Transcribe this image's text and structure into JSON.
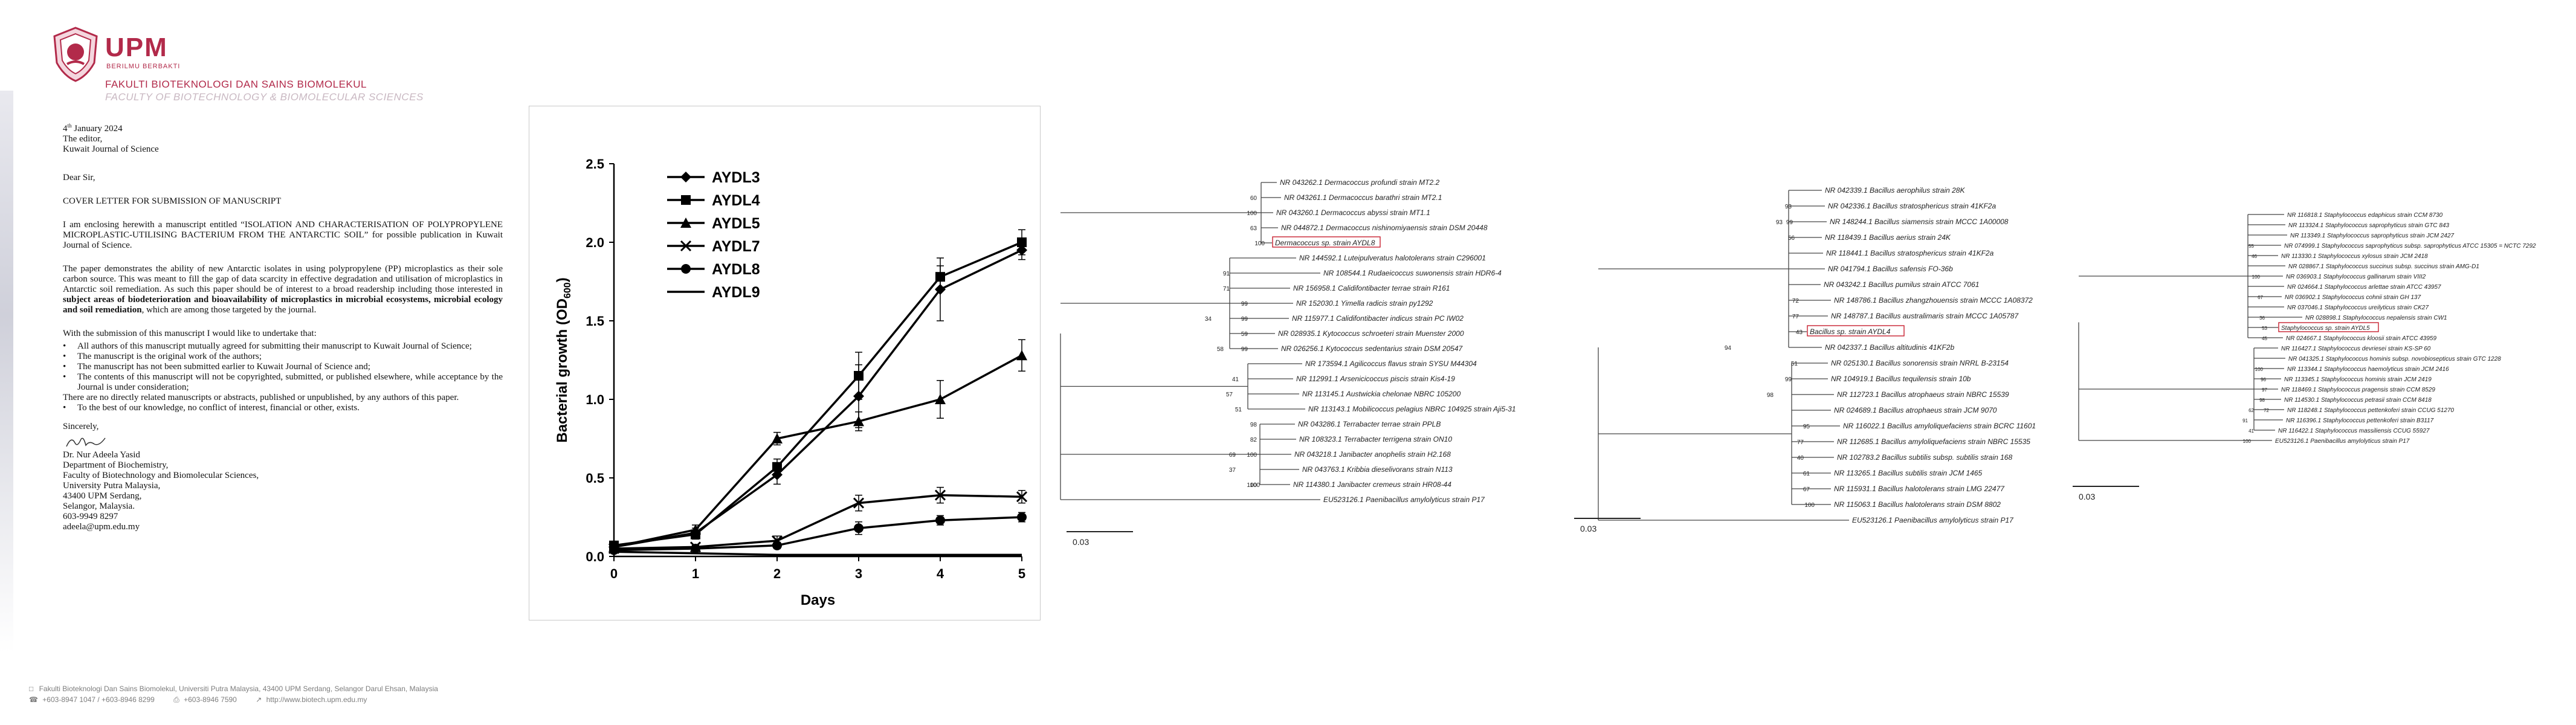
{
  "letterhead": {
    "logo_text": "UPM",
    "logo_tagline": "BERILMU BERBAKTI",
    "faculty_malay": "FAKULTI BIOTEKNOLOGI DAN SAINS BIOMOLEKUL",
    "faculty_english": "FACULTY OF BIOTECHNOLOGY & BIOMOLECULAR SCIENCES"
  },
  "letter": {
    "date_day": "4",
    "date_suffix": "th",
    "date_rest": " January 2024",
    "recipient": [
      "The editor,",
      "Kuwait Journal of Science"
    ],
    "salutation": "Dear Sir,",
    "subject": "COVER LETTER FOR SUBMISSION OF MANUSCRIPT",
    "para1": "I am enclosing herewith a manuscript entitled “ISOLATION AND CHARACTERISATION OF POLYPROPYLENE MICROPLASTIC-UTILISING BACTERIUM FROM THE ANTARCTIC SOIL” for possible publication in Kuwait Journal of Science.",
    "para2_a": "The paper demonstrates the ability of new Antarctic isolates in using polypropylene (PP) microplastics as their sole carbon source. This was meant to fill the gap of data scarcity in effective degradation and utilisation of microplastics in Antarctic soil remediation. As such this paper should be of interest to a broad readership including those interested in ",
    "para2_b": "subject areas of biodeterioration and bioavailability of microplastics in microbial ecosystems, microbial ecology and soil remediation",
    "para2_c": ", which are among those targeted by the journal.",
    "intro_list": "With the submission of this manuscript I would like to undertake that:",
    "bullets": [
      "All authors of this manuscript mutually agreed for submitting their manuscript to Kuwait Journal of Science;",
      "The manuscript is the original work of the authors;",
      "The manuscript has not been submitted earlier to Kuwait Journal of Science and;",
      "The contents of this manuscript will not be copyrighted, submitted, or published elsewhere, while acceptance by the Journal is under consideration;"
    ],
    "no_related": "There are no directly related manuscripts or abstracts, published or unpublished, by any authors of this paper.",
    "bullet_last": "To the best of our knowledge, no conflict of interest, financial or other, exists.",
    "closing": "Sincerely,",
    "signature_block": [
      "Dr. Nur Adeela Yasid",
      "Department of Biochemistry,",
      "Faculty of Biotechnology and Biomolecular Sciences,",
      "University Putra Malaysia,",
      "43400 UPM Serdang,",
      "Selangor, Malaysia.",
      "603-9949 8297",
      "adeela@upm.edu.my"
    ]
  },
  "footer": {
    "address": "Fakulti Bioteknologi Dan Sains Biomolekul, Universiti Putra Malaysia, 43400 UPM Serdang, Selangor Darul Ehsan, Malaysia",
    "phone": "+603-8947 1047 / +603-8946 8299",
    "fax": "+603-8946 7590",
    "web": "http://www.biotech.upm.edu.my"
  },
  "chart_data": {
    "type": "line",
    "xlabel": "Days",
    "ylabel_main": "Bacterial growth (OD",
    "ylabel_sub": "600",
    "ylabel_end": ")",
    "x": [
      0,
      1,
      2,
      3,
      4,
      5
    ],
    "xlim": [
      0,
      5
    ],
    "ylim": [
      0,
      2.5
    ],
    "yticks": [
      "0.0",
      "0.5",
      "1.0",
      "1.5",
      "2.0",
      "2.5"
    ],
    "xticks": [
      "0",
      "1",
      "2",
      "3",
      "4",
      "5"
    ],
    "legend_position": "top-left",
    "series": [
      {
        "name": "AYDL3",
        "marker": "diamond",
        "values": [
          0.06,
          0.15,
          0.52,
          1.02,
          1.7,
          1.95
        ],
        "err": [
          0.01,
          0.03,
          0.06,
          0.2,
          0.2,
          0.06
        ]
      },
      {
        "name": "AYDL4",
        "marker": "square",
        "values": [
          0.07,
          0.14,
          0.57,
          1.15,
          1.78,
          2.0
        ],
        "err": [
          0.01,
          0.03,
          0.05,
          0.15,
          0.07,
          0.08
        ]
      },
      {
        "name": "AYDL5",
        "marker": "triangle",
        "values": [
          0.06,
          0.17,
          0.75,
          0.86,
          1.0,
          1.28
        ],
        "err": [
          0.01,
          0.03,
          0.04,
          0.06,
          0.12,
          0.1
        ]
      },
      {
        "name": "AYDL7",
        "marker": "cross",
        "values": [
          0.05,
          0.06,
          0.1,
          0.34,
          0.39,
          0.38
        ],
        "err": [
          0.01,
          0.01,
          0.03,
          0.05,
          0.05,
          0.04
        ]
      },
      {
        "name": "AYDL8",
        "marker": "circle",
        "values": [
          0.04,
          0.05,
          0.07,
          0.18,
          0.23,
          0.25
        ],
        "err": [
          0.01,
          0.01,
          0.02,
          0.04,
          0.03,
          0.03
        ]
      },
      {
        "name": "AYDL9",
        "marker": "none",
        "values": [
          0.03,
          0.02,
          0.01,
          0.01,
          0.01,
          0.01
        ],
        "err": [
          0,
          0,
          0,
          0,
          0,
          0
        ]
      }
    ]
  },
  "trees": [
    {
      "scale_label": "0.03",
      "leaves": [
        "NR 043262.1 Dermacoccus profundi strain MT2.2",
        "NR 043261.1 Dermacoccus barathri strain MT2.1",
        "NR 043260.1 Dermacoccus abyssi strain MT1.1",
        "NR 044872.1 Dermacoccus nishinomiyaensis strain DSM 20448",
        "Dermacoccus sp. strain AYDL8",
        "NR 144592.1 Luteipulveratus halotolerans strain C296001",
        "NR 108544.1 Rudaeicoccus suwonensis strain HDR6-4",
        "NR 156958.1 Calidifontibacter terrae strain R161",
        "NR 152030.1 Yimella radicis strain py1292",
        "NR 115977.1 Calidifontibacter indicus strain PC IW02",
        "NR 028935.1 Kytococcus schroeteri strain Muenster 2000",
        "NR 026256.1 Kytococcus sedentarius strain DSM 20547",
        "NR 173594.1 Agilicoccus flavus strain SYSU M44304",
        "NR 112991.1 Arsenicicoccus piscis strain Kis4-19",
        "NR 113145.1 Austwickia chelonae NBRC 105200",
        "NR 113143.1 Mobilicoccus pelagius NBRC 104925 strain Aji5-31",
        "NR 043286.1 Terrabacter terrae strain PPLB",
        "NR 108323.1 Terrabacter terrigena strain ON10",
        "NR 043218.1 Janibacter anophelis strain H2.168",
        "NR 043763.1 Kribbia dieselivorans strain N113",
        "NR 114380.1 Janibacter cremeus strain HR08-44",
        "EU523126.1 Paenibacillus amylolyticus strain P17"
      ],
      "numbers": [
        "100",
        "60",
        "100",
        "63",
        "91",
        "71",
        "34",
        "99",
        "99",
        "59",
        "58",
        "99",
        "57",
        "41",
        "51",
        "69",
        "37",
        "100",
        "98",
        "82",
        "100",
        "100"
      ],
      "highlight": "Dermacoccus sp. strain AYDL8"
    },
    {
      "scale_label": "0.03",
      "leaves": [
        "NR 042339.1 Bacillus aerophilus strain 28K",
        "NR 042336.1 Bacillus stratosphericus strain 41KF2a",
        "NR 148244.1 Bacillus siamensis strain MCCC 1A00008",
        "NR 118439.1 Bacillus aerius strain 24K",
        "NR 118441.1 Bacillus stratosphericus strain 41KF2a",
        "NR 041794.1 Bacillus safensis FO-36b",
        "NR 043242.1 Bacillus pumilus strain ATCC 7061",
        "NR 148786.1 Bacillus zhangzhouensis strain MCCC 1A08372",
        "NR 148787.1 Bacillus australimaris strain MCCC 1A05787",
        "Bacillus sp. strain AYDL4",
        "NR 042337.1 Bacillus altitudinis 41KF2b",
        "NR 025130.1 Bacillus sonorensis strain NRRL B-23154",
        "NR 104919.1 Bacillus tequilensis strain 10b",
        "NR 112723.1 Bacillus atrophaeus strain NBRC 15539",
        "NR 024689.1 Bacillus atrophaeus strain JCM 9070",
        "NR 116022.1 Bacillus amyloliquefaciens strain BCRC 11601",
        "NR 112685.1 Bacillus amyloliquefaciens strain NBRC 15535",
        "NR 102783.2 Bacillus subtilis subsp. subtilis strain 168",
        "NR 113265.1 Bacillus subtilis strain JCM 1465",
        "NR 115931.1 Bacillus halotolerans strain LMG 22477",
        "NR 115063.1 Bacillus halotolerans strain DSM 8802",
        "EU523126.1 Paenibacillus amylolyticus strain P17"
      ],
      "numbers": [
        "93",
        "99",
        "56",
        "72",
        "77",
        "43",
        "93",
        "51",
        "94",
        "98",
        "99",
        "95",
        "77",
        "40",
        "61",
        "67",
        "100"
      ],
      "highlight": "Bacillus sp. strain AYDL4"
    },
    {
      "scale_label": "0.03",
      "leaves": [
        "NR 116818.1 Staphylococcus edaphicus strain CCM 8730",
        "NR 113324.1 Staphylococcus saprophyticus strain GTC 843",
        "NR 113349.1 Staphylococcus saprophyticus strain JCM 2427",
        "NR 074999.1 Staphylococcus saprophyticus subsp. saprophyticus ATCC 15305 = NCTC 7292",
        "NR 113330.1 Staphylococcus xylosus strain JCM 2418",
        "NR 028867.1 Staphylococcus succinus subsp. succinus strain AMG-D1",
        "NR 036903.1 Staphylococcus gallinarum strain VIII2",
        "NR 024664.1 Staphylococcus arlettae strain ATCC 43957",
        "NR 036902.1 Staphylococcus cohnii strain GH 137",
        "NR 037046.1 Staphylococcus ureilyticus strain CK27",
        "NR 028898.1 Staphylococcus nepalensis strain CW1",
        "Staphylococcus sp. strain AYDL5",
        "NR 024667.1 Staphylococcus kloosii strain ATCC 43959",
        "NR 116427.1 Staphylococcus devriesei strain KS-SP 60",
        "NR 041325.1 Staphylococcus hominis subsp. novobiosepticus strain GTC 1228",
        "NR 113344.1 Staphylococcus haemolyticus strain JCM 2416",
        "NR 113345.1 Staphylococcus hominis strain JCM 2419",
        "NR 118469.1 Staphylococcus pragensis strain CCM 8529",
        "NR 114530.1 Staphylococcus petrasii strain CCM 8418",
        "NR 118248.1 Staphylococcus pettenkoferi strain CCUG 51270",
        "NR 116396.1 Staphylococcus pettenkoferi strain B3117",
        "NR 116422.1 Staphylococcus massiliensis CCUG 55927",
        "EU523126.1 Paenibacillus amylolyticus strain P17"
      ],
      "numbers": [
        "55",
        "46",
        "100",
        "67",
        "36",
        "53",
        "45",
        "100",
        "96",
        "97",
        "98",
        "72",
        "41",
        "91",
        "62",
        "100"
      ],
      "highlight": "Staphylococcus sp. strain AYDL5"
    }
  ]
}
